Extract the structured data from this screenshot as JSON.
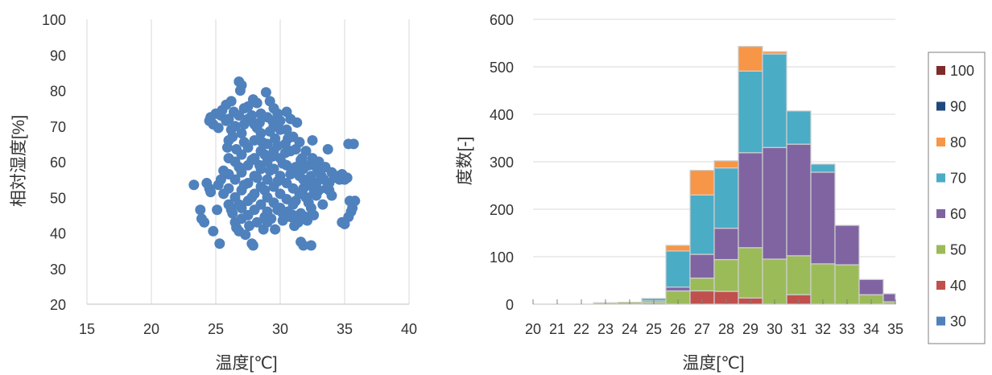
{
  "chart_data": [
    {
      "type": "scatter",
      "title": "",
      "xlabel": "温度[℃]",
      "ylabel": "相対湿度[%]",
      "xlim": [
        15,
        40
      ],
      "ylim": [
        20,
        100
      ],
      "xticks": [
        15,
        20,
        25,
        30,
        35,
        40
      ],
      "yticks": [
        20,
        30,
        40,
        50,
        60,
        70,
        80,
        90,
        100
      ],
      "grid": "vertical",
      "marker_color": "#4F81BD",
      "points": [
        [
          26.8,
          82.5
        ],
        [
          27.0,
          81.5
        ],
        [
          26.9,
          80.0
        ],
        [
          28.9,
          79.5
        ],
        [
          27.9,
          77.5
        ],
        [
          26.2,
          77.0
        ],
        [
          25.8,
          76.0
        ],
        [
          27.5,
          75.5
        ],
        [
          29.5,
          75.0
        ],
        [
          25.5,
          74.5
        ],
        [
          30.5,
          74.0
        ],
        [
          25.0,
          73.5
        ],
        [
          24.6,
          72.5
        ],
        [
          24.5,
          71.5
        ],
        [
          24.8,
          70.5
        ],
        [
          25.2,
          69.5
        ],
        [
          31.3,
          71.0
        ],
        [
          26.0,
          72.0
        ],
        [
          32.5,
          66.0
        ],
        [
          33.7,
          63.5
        ],
        [
          35.3,
          65.0
        ],
        [
          35.7,
          65.0
        ],
        [
          34.8,
          56.5
        ],
        [
          35.2,
          55.5
        ],
        [
          33.0,
          57.5
        ],
        [
          32.2,
          59.0
        ],
        [
          31.7,
          61.0
        ],
        [
          26.3,
          67.0
        ],
        [
          25.9,
          64.0
        ],
        [
          25.6,
          57.5
        ],
        [
          25.4,
          55.0
        ],
        [
          25.2,
          53.5
        ],
        [
          23.3,
          53.5
        ],
        [
          24.3,
          54.0
        ],
        [
          24.5,
          52.5
        ],
        [
          24.6,
          51.5
        ],
        [
          33.8,
          52.0
        ],
        [
          34.0,
          50.5
        ],
        [
          33.3,
          48.0
        ],
        [
          32.4,
          47.0
        ],
        [
          35.4,
          49.0
        ],
        [
          35.8,
          49.0
        ],
        [
          35.5,
          46.0
        ],
        [
          35.3,
          44.5
        ],
        [
          34.8,
          43.0
        ],
        [
          35.0,
          42.5
        ],
        [
          23.8,
          46.5
        ],
        [
          23.9,
          44.0
        ],
        [
          24.1,
          43.0
        ],
        [
          24.8,
          40.5
        ],
        [
          25.3,
          37.0
        ],
        [
          26.0,
          48.0
        ],
        [
          26.3,
          45.5
        ],
        [
          26.5,
          43.0
        ],
        [
          26.8,
          40.5
        ],
        [
          27.3,
          39.5
        ],
        [
          27.8,
          37.0
        ],
        [
          27.9,
          36.5
        ],
        [
          29.6,
          41.0
        ],
        [
          31.6,
          37.5
        ],
        [
          31.8,
          36.5
        ],
        [
          32.4,
          36.5
        ],
        [
          31.1,
          42.0
        ],
        [
          32.1,
          43.5
        ],
        [
          30.8,
          44.5
        ],
        [
          31.6,
          45.5
        ],
        [
          25.6,
          51.0
        ],
        [
          25.1,
          46.5
        ],
        [
          28.7,
          41.0
        ],
        [
          29.3,
          44.0
        ],
        [
          26.5,
          70.0
        ],
        [
          27.0,
          68.0
        ],
        [
          27.5,
          72.0
        ],
        [
          28.0,
          70.5
        ],
        [
          28.5,
          73.5
        ],
        [
          29.0,
          72.5
        ],
        [
          29.5,
          70.0
        ],
        [
          30.0,
          71.5
        ],
        [
          30.5,
          69.0
        ],
        [
          31.0,
          67.0
        ],
        [
          31.5,
          65.5
        ],
        [
          32.0,
          63.0
        ],
        [
          32.5,
          61.0
        ],
        [
          33.0,
          60.0
        ],
        [
          33.5,
          58.5
        ],
        [
          34.0,
          57.0
        ],
        [
          34.5,
          56.0
        ],
        [
          26.5,
          60.0
        ],
        [
          27.0,
          62.0
        ],
        [
          27.5,
          64.0
        ],
        [
          28.0,
          66.0
        ],
        [
          28.5,
          68.0
        ],
        [
          29.0,
          65.0
        ],
        [
          29.5,
          63.0
        ],
        [
          30.0,
          61.0
        ],
        [
          30.5,
          59.0
        ],
        [
          31.0,
          57.5
        ],
        [
          31.5,
          56.0
        ],
        [
          32.0,
          54.5
        ],
        [
          32.5,
          53.0
        ],
        [
          33.0,
          52.0
        ],
        [
          26.5,
          55.0
        ],
        [
          27.0,
          57.0
        ],
        [
          27.5,
          59.0
        ],
        [
          28.0,
          61.0
        ],
        [
          28.5,
          63.0
        ],
        [
          29.0,
          60.0
        ],
        [
          29.5,
          58.0
        ],
        [
          30.0,
          56.0
        ],
        [
          30.5,
          54.0
        ],
        [
          31.0,
          52.5
        ],
        [
          31.5,
          51.0
        ],
        [
          32.0,
          50.0
        ],
        [
          26.5,
          50.0
        ],
        [
          27.0,
          52.0
        ],
        [
          27.5,
          54.0
        ],
        [
          28.0,
          56.0
        ],
        [
          28.5,
          58.0
        ],
        [
          29.0,
          55.0
        ],
        [
          29.5,
          53.0
        ],
        [
          30.0,
          51.0
        ],
        [
          30.5,
          49.5
        ],
        [
          31.0,
          48.0
        ],
        [
          27.0,
          47.0
        ],
        [
          27.5,
          49.0
        ],
        [
          28.0,
          51.0
        ],
        [
          28.5,
          53.0
        ],
        [
          29.0,
          50.0
        ],
        [
          29.5,
          48.5
        ],
        [
          30.0,
          47.0
        ],
        [
          27.5,
          45.0
        ],
        [
          28.0,
          46.5
        ],
        [
          28.5,
          48.0
        ],
        [
          29.0,
          46.0
        ],
        [
          26.0,
          52.5
        ],
        [
          26.0,
          56.5
        ],
        [
          26.0,
          61.0
        ],
        [
          26.0,
          66.0
        ],
        [
          26.4,
          74.0
        ],
        [
          27.2,
          75.0
        ],
        [
          28.2,
          76.5
        ],
        [
          29.2,
          77.0
        ],
        [
          27.6,
          42.0
        ],
        [
          28.2,
          43.0
        ],
        [
          28.8,
          44.5
        ],
        [
          30.2,
          43.5
        ],
        [
          30.6,
          46.0
        ],
        [
          31.2,
          49.0
        ],
        [
          31.8,
          52.5
        ],
        [
          32.4,
          56.0
        ],
        [
          32.8,
          58.5
        ],
        [
          33.4,
          55.0
        ],
        [
          33.8,
          54.0
        ],
        [
          32.8,
          50.5
        ],
        [
          31.6,
          60.5
        ],
        [
          31.2,
          63.5
        ],
        [
          30.6,
          66.5
        ],
        [
          30.0,
          69.0
        ],
        [
          29.2,
          68.5
        ],
        [
          28.2,
          69.5
        ],
        [
          27.2,
          70.5
        ],
        [
          26.8,
          73.0
        ],
        [
          27.8,
          73.0
        ],
        [
          29.8,
          73.5
        ],
        [
          30.8,
          72.0
        ],
        [
          26.6,
          63.5
        ],
        [
          27.2,
          65.5
        ],
        [
          26.8,
          58.5
        ],
        [
          27.8,
          60.5
        ],
        [
          28.8,
          62.0
        ],
        [
          29.8,
          64.5
        ],
        [
          30.8,
          63.0
        ],
        [
          31.8,
          58.0
        ],
        [
          32.6,
          51.0
        ],
        [
          26.8,
          48.0
        ],
        [
          27.8,
          50.0
        ],
        [
          28.8,
          52.0
        ],
        [
          29.8,
          54.5
        ],
        [
          30.8,
          56.5
        ],
        [
          31.8,
          55.0
        ],
        [
          32.8,
          54.0
        ],
        [
          33.6,
          52.5
        ],
        [
          27.2,
          53.5
        ],
        [
          28.2,
          55.5
        ],
        [
          29.2,
          57.5
        ],
        [
          30.2,
          59.5
        ],
        [
          31.2,
          58.5
        ],
        [
          28.4,
          59.0
        ],
        [
          29.4,
          61.5
        ],
        [
          30.4,
          62.5
        ],
        [
          28.6,
          65.5
        ],
        [
          29.6,
          66.5
        ],
        [
          30.4,
          65.0
        ],
        [
          28.4,
          71.0
        ],
        [
          29.4,
          71.5
        ],
        [
          26.2,
          69.0
        ],
        [
          25.8,
          71.5
        ],
        [
          25.4,
          73.0
        ],
        [
          33.2,
          56.0
        ],
        [
          34.2,
          55.5
        ],
        [
          34.6,
          55.0
        ],
        [
          35.0,
          55.0
        ],
        [
          29.0,
          43.0
        ],
        [
          27.0,
          44.0
        ],
        [
          26.2,
          46.5
        ],
        [
          26.6,
          41.5
        ],
        [
          31.4,
          43.0
        ],
        [
          31.0,
          45.0
        ],
        [
          30.2,
          45.5
        ],
        [
          29.8,
          46.5
        ],
        [
          32.2,
          48.5
        ],
        [
          32.6,
          45.0
        ],
        [
          32.0,
          44.5
        ],
        [
          35.6,
          47.0
        ]
      ]
    },
    {
      "type": "bar",
      "stacked": true,
      "title": "",
      "xlabel": "温度[℃]",
      "ylabel": "度数[-]",
      "ylim": [
        0,
        600
      ],
      "yticks": [
        0,
        100,
        200,
        300,
        400,
        500,
        600
      ],
      "grid": "horizontal",
      "legend_position": "right",
      "categories": [
        "20",
        "21",
        "22",
        "23",
        "24",
        "25",
        "26",
        "27",
        "28",
        "29",
        "30",
        "31",
        "32",
        "33",
        "34",
        "35"
      ],
      "bins": [
        {
          "from": 22.5,
          "to": 23.5
        },
        {
          "from": 23.5,
          "to": 24.5
        },
        {
          "from": 24.5,
          "to": 25.5
        },
        {
          "from": 25.5,
          "to": 26.5
        },
        {
          "from": 26.5,
          "to": 27.5
        },
        {
          "from": 27.5,
          "to": 28.5
        },
        {
          "from": 28.5,
          "to": 29.5
        },
        {
          "from": 29.5,
          "to": 30.5
        },
        {
          "from": 30.5,
          "to": 31.5
        },
        {
          "from": 31.5,
          "to": 32.5
        },
        {
          "from": 32.5,
          "to": 33.5
        },
        {
          "from": 33.5,
          "to": 34.5
        },
        {
          "from": 34.5,
          "to": 35.5
        }
      ],
      "series": [
        {
          "name": "30",
          "color": "#4F81BD",
          "values": [
            0,
            0,
            3,
            0,
            0,
            0,
            0,
            0,
            0,
            0,
            0,
            0,
            0
          ]
        },
        {
          "name": "40",
          "color": "#C0504D",
          "values": [
            0,
            0,
            0,
            0,
            28,
            27,
            13,
            0,
            20,
            0,
            0,
            0,
            0
          ]
        },
        {
          "name": "50",
          "color": "#9BBB59",
          "values": [
            3,
            4,
            4,
            28,
            27,
            67,
            106,
            95,
            82,
            85,
            83,
            20,
            5
          ]
        },
        {
          "name": "60",
          "color": "#8064A2",
          "values": [
            0,
            0,
            0,
            8,
            50,
            66,
            200,
            235,
            235,
            193,
            83,
            32,
            17
          ]
        },
        {
          "name": "70",
          "color": "#4BACC6",
          "values": [
            0,
            0,
            5,
            76,
            125,
            127,
            172,
            197,
            70,
            17,
            0,
            0,
            0
          ]
        },
        {
          "name": "80",
          "color": "#F79646",
          "values": [
            0,
            0,
            0,
            12,
            52,
            15,
            52,
            5,
            0,
            0,
            0,
            0,
            0
          ]
        },
        {
          "name": "90",
          "color": "#1F497D",
          "values": [
            0,
            0,
            0,
            0,
            0,
            0,
            0,
            0,
            0,
            0,
            0,
            0,
            0
          ]
        },
        {
          "name": "100",
          "color": "#7F2B2B",
          "values": [
            0,
            0,
            0,
            0,
            0,
            0,
            0,
            0,
            0,
            0,
            0,
            0,
            0
          ]
        }
      ],
      "legend_order": [
        "100",
        "90",
        "80",
        "70",
        "60",
        "50",
        "40",
        "30"
      ]
    }
  ]
}
